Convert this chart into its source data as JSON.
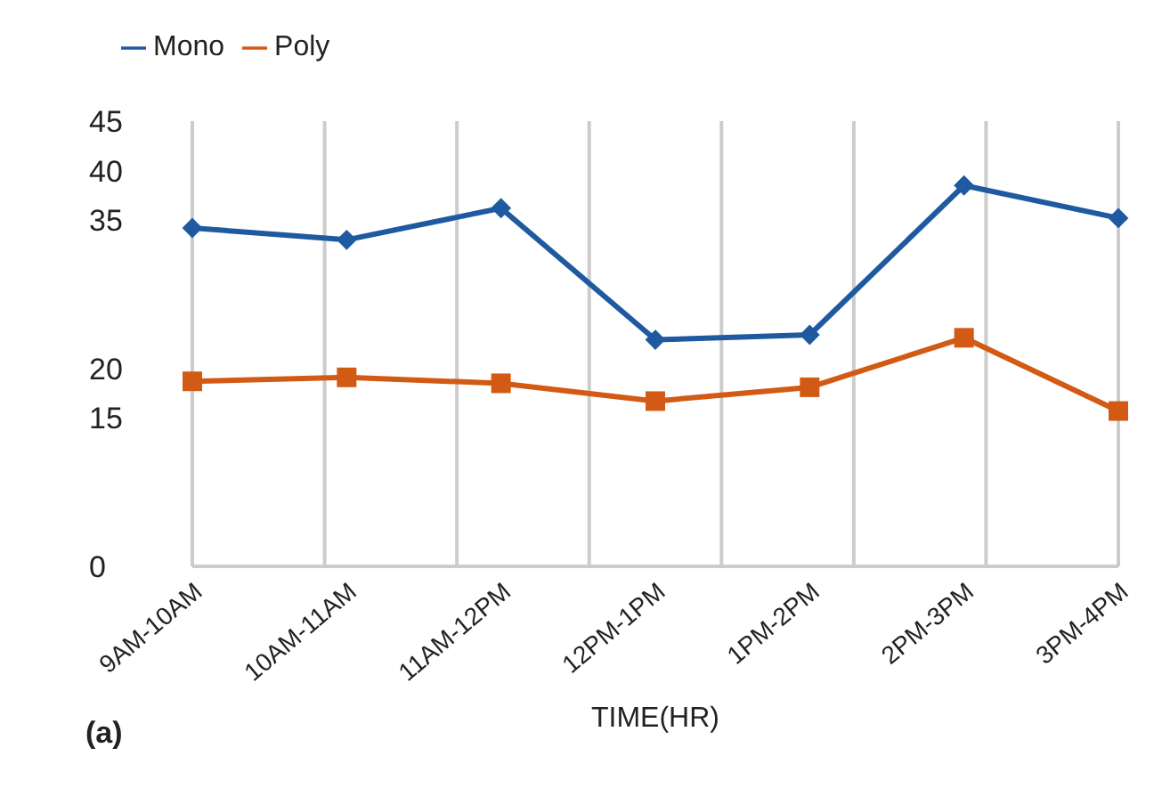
{
  "chart_data": {
    "type": "line",
    "xlabel": "TIME(HR)",
    "categories": [
      "9AM-10AM",
      "10AM-11AM",
      "11AM-12PM",
      "12PM-1PM",
      "1PM-2PM",
      "2PM-3PM",
      "3PM-4PM"
    ],
    "series": [
      {
        "name": "Mono",
        "color": "#1f5aa0",
        "marker": "diamond",
        "values": [
          34.2,
          33.0,
          36.2,
          22.9,
          23.4,
          38.5,
          35.2
        ]
      },
      {
        "name": "Poly",
        "color": "#d25a14",
        "marker": "square",
        "values": [
          18.7,
          19.1,
          18.5,
          16.7,
          18.1,
          23.1,
          15.7
        ]
      }
    ],
    "ylim": [
      0,
      45
    ],
    "yticks": [
      0,
      15,
      20,
      35,
      40,
      45
    ],
    "grid": "x",
    "legend": "top",
    "annotations": [
      "(a)"
    ]
  }
}
